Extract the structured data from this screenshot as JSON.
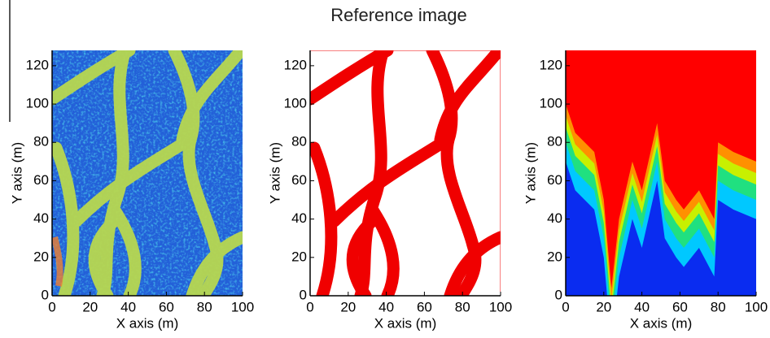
{
  "title": "Reference image",
  "chart_data": [
    {
      "type": "heatmap",
      "xlabel": "X axis (m)",
      "ylabel": "Y axis (m)",
      "xlim": [
        0,
        100
      ],
      "ylim": [
        0,
        128
      ],
      "xticks": [
        0,
        20,
        40,
        60,
        80,
        100
      ],
      "yticks": [
        0,
        20,
        40,
        60,
        80,
        100,
        120
      ]
    },
    {
      "type": "heatmap",
      "xlabel": "X axis (m)",
      "ylabel": "Y axis (m)",
      "xlim": [
        0,
        100
      ],
      "ylim": [
        0,
        128
      ],
      "xticks": [
        0,
        20,
        40,
        60,
        80,
        100
      ],
      "yticks": [
        0,
        20,
        40,
        60,
        80,
        100,
        120
      ]
    },
    {
      "type": "heatmap",
      "xlabel": "X axis (m)",
      "ylabel": "Y axis (m)",
      "xlim": [
        0,
        100
      ],
      "ylim": [
        0,
        128
      ],
      "xticks": [
        0,
        20,
        40,
        60,
        80,
        100
      ],
      "yticks": [
        0,
        20,
        40,
        60,
        80,
        100,
        120
      ]
    }
  ]
}
